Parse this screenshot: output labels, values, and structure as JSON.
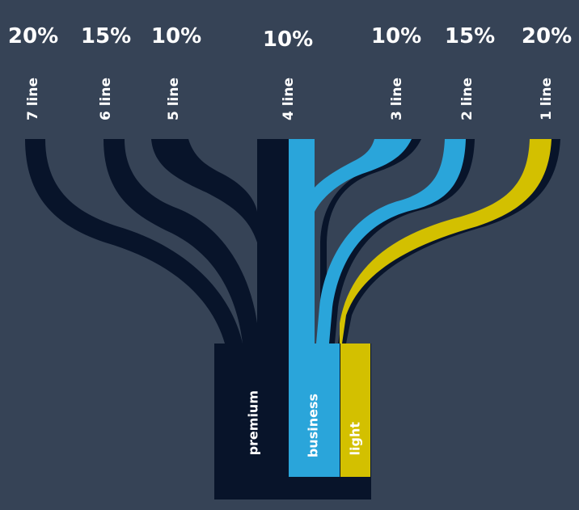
{
  "colors": {
    "background": "#364356",
    "premium": "#08142a",
    "business": "#2aa5da",
    "light": "#d3c000",
    "text": "#ffffff"
  },
  "lines": [
    {
      "label": "7 line",
      "percent": "20%",
      "group": "premium"
    },
    {
      "label": "6 line",
      "percent": "15%",
      "group": "premium"
    },
    {
      "label": "5 line",
      "percent": "10%",
      "group": "premium"
    },
    {
      "label": "4 line",
      "percent": "10%",
      "group": "premium"
    },
    {
      "label": "3 line",
      "percent": "10%",
      "group": "business"
    },
    {
      "label": "2 line",
      "percent": "15%",
      "group": "business"
    },
    {
      "label": "1 line",
      "percent": "20%",
      "group": "light"
    }
  ],
  "groups": {
    "premium": {
      "label": "premium"
    },
    "business": {
      "label": "business"
    },
    "light": {
      "label": "light"
    }
  }
}
